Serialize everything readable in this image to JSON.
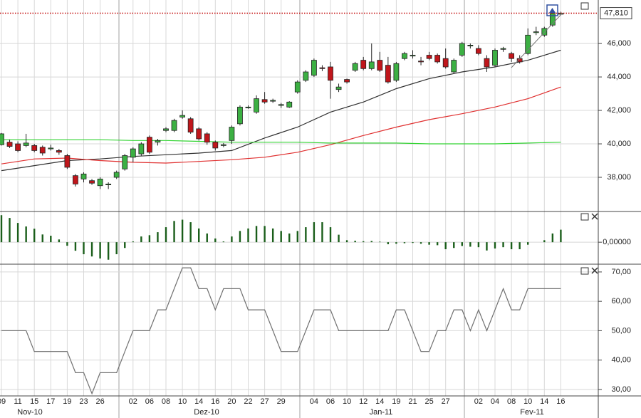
{
  "chart_data": [
    {
      "type": "candlestick",
      "categories": [
        "09",
        null,
        "11",
        null,
        "15",
        null,
        "17",
        null,
        "19",
        null,
        "23",
        null,
        "26",
        null,
        null,
        null,
        "02",
        null,
        "06",
        null,
        "08",
        null,
        "10",
        null,
        "14",
        null,
        "16",
        null,
        "20",
        null,
        "22",
        null,
        "27",
        null,
        "29",
        null,
        null,
        null,
        "04",
        null,
        "06",
        null,
        "10",
        null,
        "12",
        null,
        "14",
        null,
        "19",
        null,
        "21",
        null,
        "25",
        null,
        "27",
        null,
        null,
        null,
        "02",
        null,
        "04",
        null,
        "08",
        null,
        "10",
        null,
        "14",
        null,
        "16"
      ],
      "months": [
        "Nov-10",
        "Dez-10",
        "Jan-11",
        "Fev-11"
      ],
      "open": [
        39950,
        40100,
        40000,
        39900,
        39900,
        39800,
        39700,
        39600,
        39300,
        38100,
        37900,
        37800,
        37500,
        37550,
        38000,
        38500,
        39200,
        39400,
        40400,
        40100,
        40800,
        40800,
        41600,
        41500,
        40900,
        40600,
        40100,
        39900,
        40200,
        41200,
        42150,
        41900,
        42650,
        42550,
        42300,
        42200,
        43100,
        43800,
        44100,
        44550,
        44600,
        43250,
        43850,
        44400,
        45000,
        44500,
        45000,
        44700,
        43800,
        45100,
        45250,
        44950,
        45300,
        45300,
        45100,
        44300,
        45300,
        45850,
        45700,
        45100,
        44700,
        45650,
        45400,
        45100,
        45400,
        46650,
        46500,
        47100,
        47750
      ],
      "high": [
        40650,
        40250,
        40150,
        40600,
        40000,
        39900,
        39950,
        39700,
        39400,
        38200,
        38300,
        37900,
        38000,
        37700,
        38400,
        39400,
        39800,
        40100,
        40500,
        40300,
        41000,
        41500,
        42000,
        41600,
        41000,
        40700,
        40200,
        40050,
        41100,
        42300,
        42300,
        42900,
        43100,
        42700,
        42450,
        42550,
        43800,
        44400,
        45100,
        44700,
        44900,
        43600,
        43900,
        44900,
        45200,
        46000,
        45500,
        45200,
        44900,
        45500,
        45600,
        45200,
        45500,
        45400,
        45700,
        45100,
        46100,
        46000,
        45900,
        45300,
        45700,
        45800,
        45500,
        45300,
        46900,
        47000,
        47000,
        47900,
        47900
      ],
      "low": [
        39900,
        39750,
        39500,
        39800,
        39500,
        39300,
        39600,
        39350,
        38500,
        37450,
        37700,
        37550,
        37300,
        37300,
        37900,
        38400,
        38900,
        39300,
        39400,
        39900,
        40700,
        40700,
        41500,
        40600,
        40200,
        39950,
        39600,
        39800,
        40000,
        41100,
        42100,
        41800,
        42400,
        42450,
        42150,
        42150,
        43000,
        43700,
        44000,
        44350,
        42700,
        43100,
        43600,
        44300,
        44400,
        44400,
        44300,
        43600,
        43700,
        45000,
        45100,
        44700,
        45000,
        44800,
        44500,
        44200,
        45200,
        45700,
        45300,
        44300,
        44600,
        45500,
        44900,
        44800,
        45300,
        46500,
        46400,
        47000,
        47700
      ],
      "close": [
        40600,
        39850,
        39600,
        40050,
        39600,
        39450,
        39750,
        39500,
        38600,
        37600,
        38200,
        37650,
        37900,
        37600,
        38300,
        39300,
        39700,
        40000,
        39500,
        40200,
        40900,
        41400,
        41700,
        40700,
        40300,
        40100,
        39750,
        39950,
        41000,
        42200,
        42200,
        42700,
        42500,
        42600,
        42350,
        42500,
        43700,
        44300,
        45000,
        44500,
        43800,
        43400,
        43700,
        44800,
        44500,
        44900,
        44400,
        43700,
        44800,
        45400,
        45300,
        44900,
        45100,
        44900,
        44600,
        45000,
        46000,
        45900,
        45400,
        44600,
        45600,
        45700,
        45100,
        44900,
        46500,
        46700,
        46900,
        47800,
        47810
      ],
      "color_up": "#3cb043",
      "color_down": "#c0161b",
      "series": [
        {
          "color": "#303030",
          "x": [
            0,
            4,
            8,
            12,
            16,
            20,
            24,
            28,
            32,
            36,
            40,
            44,
            48,
            52,
            56,
            60,
            64,
            68
          ],
          "values": [
            38400,
            38700,
            39000,
            39100,
            39250,
            39350,
            39450,
            39600,
            40350,
            41000,
            41900,
            42500,
            43300,
            43900,
            44300,
            44600,
            45000,
            45600
          ]
        },
        {
          "color": "#e03030",
          "x": [
            0,
            4,
            8,
            12,
            16,
            20,
            24,
            28,
            32,
            36,
            40,
            44,
            48,
            52,
            56,
            60,
            64,
            68
          ],
          "values": [
            38800,
            39100,
            39150,
            39000,
            38900,
            38850,
            38950,
            39050,
            39200,
            39500,
            39950,
            40500,
            41000,
            41450,
            41800,
            42200,
            42700,
            43400
          ]
        },
        {
          "color": "#33d433",
          "x": [
            0,
            4,
            8,
            12,
            16,
            20,
            24,
            28,
            32,
            36,
            40,
            44,
            48,
            52,
            56,
            60,
            64,
            68
          ],
          "values": [
            40250,
            40250,
            40250,
            40250,
            40200,
            40200,
            40150,
            40100,
            40100,
            40100,
            40050,
            40050,
            40050,
            40000,
            40000,
            40000,
            40050,
            40100
          ]
        }
      ],
      "ylim": [
        36000,
        48600
      ],
      "yticks": [
        {
          "value": 38000,
          "label": "38,000"
        },
        {
          "value": 40000,
          "label": "40,000"
        },
        {
          "value": 42000,
          "label": "42,000"
        },
        {
          "value": 44000,
          "label": "44,000"
        },
        {
          "value": 46000,
          "label": "46,000"
        }
      ],
      "last_price": {
        "value": 47810,
        "label": "47,810"
      },
      "grid": true
    },
    {
      "type": "bar",
      "values": [
        1080,
        970,
        770,
        630,
        540,
        310,
        260,
        110,
        -140,
        -340,
        -480,
        -570,
        -650,
        -700,
        -480,
        -230,
        30,
        230,
        280,
        400,
        600,
        850,
        900,
        800,
        550,
        350,
        150,
        30,
        230,
        450,
        550,
        650,
        650,
        550,
        450,
        350,
        450,
        600,
        800,
        800,
        600,
        300,
        80,
        60,
        40,
        50,
        20,
        -80,
        -60,
        -40,
        -30,
        -60,
        -100,
        -120,
        -280,
        -230,
        -150,
        -180,
        -200,
        -330,
        -250,
        -200,
        -280,
        -280,
        -100,
        0,
        80,
        350,
        500
      ],
      "color": "#1a5e1a",
      "ylim": [
        -850,
        1200
      ],
      "yticks": [
        {
          "value": 0,
          "label": "0,00000"
        }
      ],
      "grid": true
    },
    {
      "type": "line",
      "values": [
        50,
        50,
        50,
        50,
        42.9,
        42.9,
        42.9,
        42.9,
        42.9,
        35.7,
        35.7,
        28.6,
        35.7,
        35.7,
        35.7,
        42.9,
        50,
        50,
        50,
        57.1,
        57.1,
        64.3,
        71.4,
        71.4,
        64.3,
        64.3,
        57.1,
        64.3,
        64.3,
        64.3,
        57.1,
        57.1,
        57.1,
        50,
        42.9,
        42.9,
        42.9,
        50,
        57.1,
        57.1,
        57.1,
        50,
        50,
        50,
        50,
        50,
        50,
        50,
        57.1,
        57.1,
        50,
        42.9,
        42.9,
        50,
        50,
        57.1,
        57.1,
        50,
        57.1,
        50,
        57.1,
        64.3,
        57.1,
        57.1,
        64.3,
        64.3,
        64.3,
        64.3,
        64.3
      ],
      "color": "#707070",
      "ylim": [
        27.8,
        72.4
      ],
      "yticks": [
        {
          "value": 30,
          "label": "30,00"
        },
        {
          "value": 40,
          "label": "40,00"
        },
        {
          "value": 50,
          "label": "50,00"
        },
        {
          "value": 60,
          "label": "60,00"
        },
        {
          "value": 70,
          "label": "70,00"
        }
      ],
      "grid": true
    }
  ]
}
